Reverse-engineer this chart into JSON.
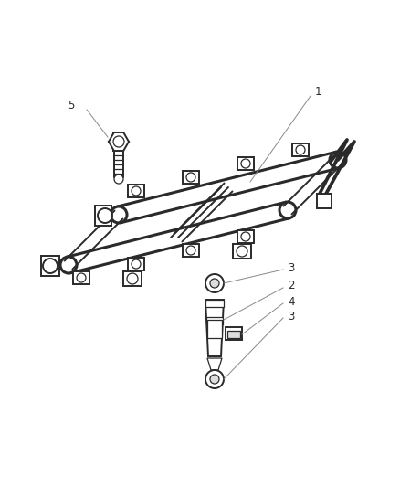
{
  "background_color": "#ffffff",
  "line_color": "#2a2a2a",
  "label_color": "#2a2a2a",
  "callout_color": "#888888",
  "fig_width": 4.39,
  "fig_height": 5.33,
  "dpi": 100,
  "lw_rail": 2.2,
  "lw_detail": 1.4,
  "lw_thin": 0.9,
  "lw_callout": 0.7,
  "label_fontsize": 8.5
}
